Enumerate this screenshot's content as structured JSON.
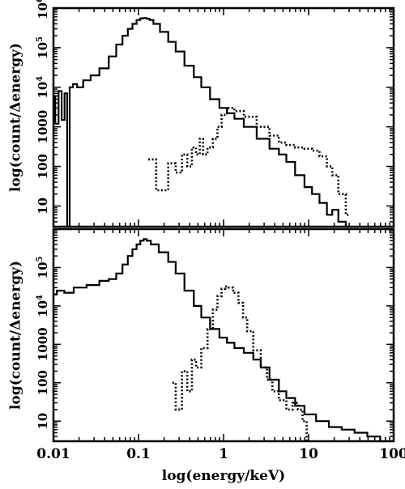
{
  "chart_data": [
    {
      "type": "line",
      "panel": "top",
      "xscale": "log",
      "yscale": "log",
      "xlim": [
        0.01,
        100
      ],
      "ylim": [
        3,
        1000000
      ],
      "ylabel": "log(count/Δenergy)",
      "yticks": [
        {
          "value": 1000000,
          "label": "10⁶",
          "base": "10",
          "exp": "6"
        },
        {
          "value": 100000,
          "label": "10⁵",
          "base": "10",
          "exp": "5"
        },
        {
          "value": 10000,
          "label": "10⁴",
          "base": "10",
          "exp": "4"
        },
        {
          "value": 1000,
          "label": "1000"
        },
        {
          "value": 100,
          "label": "100"
        },
        {
          "value": 10,
          "label": "10"
        }
      ],
      "series": [
        {
          "style": "solid",
          "x": [
            0.01,
            0.011,
            0.012,
            0.013,
            0.014,
            0.015,
            0.016,
            0.018,
            0.02,
            0.025,
            0.03,
            0.04,
            0.05,
            0.06,
            0.07,
            0.08,
            0.09,
            0.1,
            0.11,
            0.12,
            0.13,
            0.14,
            0.16,
            0.2,
            0.25,
            0.3,
            0.4,
            0.5,
            0.6,
            0.8,
            1.0,
            1.2,
            1.5,
            2.0,
            3.0,
            4.0,
            5.0,
            6.0,
            8.0,
            10.0,
            12.0,
            15.0,
            18.0,
            20.0,
            25.0,
            30.0
          ],
          "y": [
            6000,
            1200,
            8000,
            1500,
            7000,
            3,
            10000,
            12000,
            10000,
            15000,
            20000,
            30000,
            60000,
            120000,
            200000,
            300000,
            400000,
            500000,
            550000,
            560000,
            540000,
            500000,
            400000,
            250000,
            140000,
            80000,
            35000,
            18000,
            10000,
            5000,
            3000,
            2200,
            1600,
            1000,
            500,
            280,
            200,
            130,
            60,
            30,
            20,
            12,
            6,
            8,
            4,
            3
          ]
        },
        {
          "style": "dotted",
          "x": [
            0.13,
            0.2,
            0.25,
            0.3,
            0.35,
            0.4,
            0.45,
            0.5,
            0.55,
            0.6,
            0.7,
            0.8,
            0.9,
            1.0,
            1.2,
            1.5,
            2.0,
            3.0,
            4.0,
            5.0,
            6.0,
            8.0,
            10.0,
            12.0,
            15.0,
            18.0,
            20.0,
            25.0,
            30.0
          ],
          "y": [
            150,
            25,
            120,
            70,
            200,
            100,
            300,
            200,
            500,
            200,
            300,
            500,
            1000,
            2000,
            3000,
            2500,
            1800,
            1000,
            600,
            400,
            350,
            300,
            280,
            250,
            180,
            100,
            60,
            20,
            6
          ]
        }
      ]
    },
    {
      "type": "line",
      "panel": "bottom",
      "xscale": "log",
      "yscale": "log",
      "xlim": [
        0.01,
        100
      ],
      "ylim": [
        3,
        1000000
      ],
      "xlabel": "log(energy/keV)",
      "ylabel": "log(count/Δenergy)",
      "xticks": [
        {
          "value": 0.01,
          "label": "0.01"
        },
        {
          "value": 0.1,
          "label": "0.1"
        },
        {
          "value": 1,
          "label": "1"
        },
        {
          "value": 10,
          "label": "10"
        },
        {
          "value": 100,
          "label": "100"
        }
      ],
      "yticks": [
        {
          "value": 100000,
          "label": "10⁵",
          "base": "10",
          "exp": "5"
        },
        {
          "value": 10000,
          "label": "10⁴",
          "base": "10",
          "exp": "4"
        },
        {
          "value": 1000,
          "label": "1000"
        },
        {
          "value": 100,
          "label": "100"
        },
        {
          "value": 10,
          "label": "10"
        }
      ],
      "series": [
        {
          "style": "solid",
          "x": [
            0.01,
            0.012,
            0.015,
            0.02,
            0.03,
            0.04,
            0.05,
            0.06,
            0.07,
            0.08,
            0.09,
            0.1,
            0.11,
            0.12,
            0.13,
            0.15,
            0.2,
            0.25,
            0.3,
            0.4,
            0.5,
            0.6,
            0.8,
            1.0,
            1.2,
            1.5,
            2.0,
            2.5,
            3.0,
            4.0,
            5.0,
            6.0,
            8.0,
            10.0,
            15.0,
            20.0,
            30.0,
            40.0,
            60.0,
            80.0
          ],
          "y": [
            20000,
            25000,
            22000,
            30000,
            35000,
            45000,
            50000,
            70000,
            120000,
            200000,
            300000,
            400000,
            500000,
            550000,
            500000,
            400000,
            250000,
            140000,
            70000,
            25000,
            10000,
            5000,
            2500,
            1500,
            1100,
            800,
            600,
            400,
            250,
            120,
            60,
            40,
            25,
            15,
            10,
            7,
            6,
            5,
            4,
            3
          ]
        },
        {
          "style": "dotted",
          "x": [
            0.25,
            0.3,
            0.35,
            0.4,
            0.45,
            0.5,
            0.6,
            0.7,
            0.8,
            0.9,
            1.0,
            1.1,
            1.2,
            1.4,
            1.6,
            1.8,
            2.0,
            2.5,
            3.0,
            3.5,
            4.0,
            5.0,
            6.0,
            7.0,
            8.0,
            9.0,
            10.0
          ],
          "y": [
            100,
            20,
            200,
            60,
            400,
            250,
            800,
            2500,
            8000,
            18000,
            28000,
            32000,
            30000,
            22000,
            12000,
            5000,
            2200,
            700,
            250,
            120,
            60,
            35,
            20,
            30,
            20,
            10,
            3
          ]
        }
      ]
    }
  ]
}
